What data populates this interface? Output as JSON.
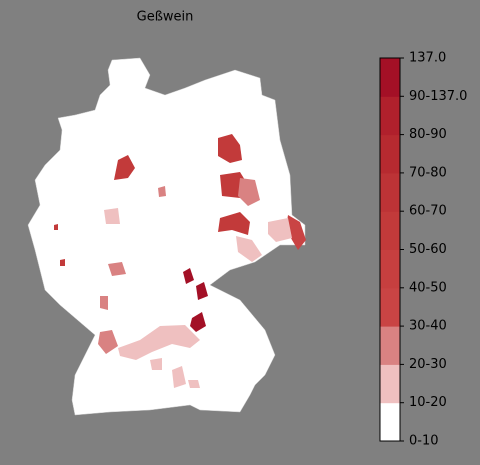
{
  "title": "Geßwein",
  "colorbar": {
    "labels": [
      "0-10",
      "10-20",
      "20-30",
      "30-40",
      "40-50",
      "50-60",
      "60-70",
      "70-80",
      "80-90",
      "90-137.0",
      "137.0"
    ],
    "colors": [
      "#ffffff",
      "#efc0c0",
      "#d98282",
      "#c94444",
      "#c63f3f",
      "#c23a3a",
      "#bd3336",
      "#b72a30",
      "#b0202c",
      "#a31026"
    ]
  }
}
